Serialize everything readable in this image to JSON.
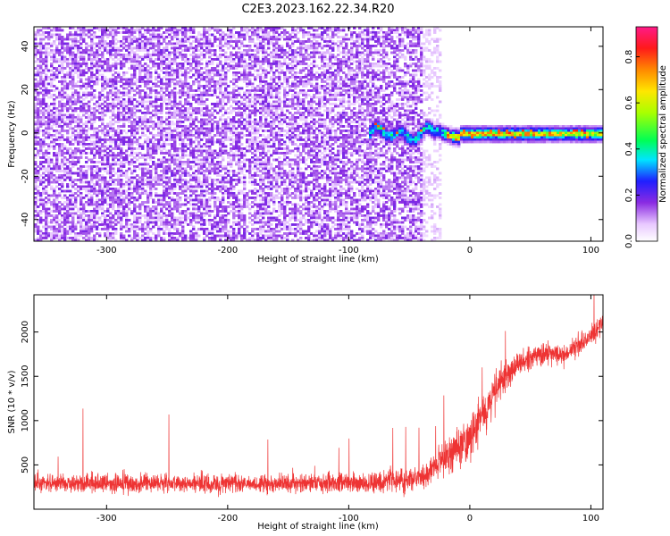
{
  "title": "C2E3.2023.162.22.34.R20",
  "chart_data": [
    {
      "type": "heatmap",
      "xlabel": "Height of straight line (km)",
      "ylabel": "Frequency (Hz)",
      "xlim": [
        -360,
        110
      ],
      "ylim": [
        -50,
        49
      ],
      "xticks": [
        -300,
        -200,
        -100,
        0,
        100
      ],
      "yticks": [
        -40,
        -20,
        0,
        20,
        40
      ],
      "colorbar": {
        "label": "Normalized spectral amplitude",
        "range": [
          0,
          0.93
        ],
        "ticks": [
          0.0,
          0.2,
          0.4,
          0.6,
          0.8
        ],
        "colormap": "rainbow (white-violet-blue-cyan-green-yellow-orange-red-magenta)"
      },
      "features": [
        {
          "region": "noise",
          "x_range": [
            -360,
            -35
          ],
          "freq_range": [
            -50,
            49
          ],
          "amplitude": "low (0.05-0.15)"
        },
        {
          "region": "signal band",
          "x_range": [
            -85,
            110
          ],
          "center_freq": 0,
          "half_width_hz": 3,
          "amplitude": "0.3-0.9"
        }
      ]
    },
    {
      "type": "line",
      "xlabel": "Height of straight line (km)",
      "ylabel": "SNR (10 * v/v)",
      "xlim": [
        -360,
        110
      ],
      "ylim": [
        0,
        2420
      ],
      "xticks": [
        -300,
        -200,
        -100,
        0,
        100
      ],
      "yticks": [
        500,
        1000,
        1500,
        2000
      ],
      "color": "#ee3333",
      "series": [
        {
          "x": [
            -360,
            -320,
            -280,
            -240,
            -200,
            -160,
            -120,
            -80,
            -40,
            -20,
            0,
            20,
            40,
            60,
            80,
            100,
            110
          ],
          "y": [
            300,
            300,
            290,
            290,
            290,
            290,
            300,
            300,
            350,
            600,
            800,
            1300,
            1650,
            1750,
            1750,
            1950,
            2100
          ],
          "spread": [
            150,
            150,
            150,
            150,
            150,
            150,
            150,
            150,
            180,
            300,
            350,
            300,
            180,
            160,
            160,
            160,
            170
          ]
        }
      ]
    }
  ]
}
